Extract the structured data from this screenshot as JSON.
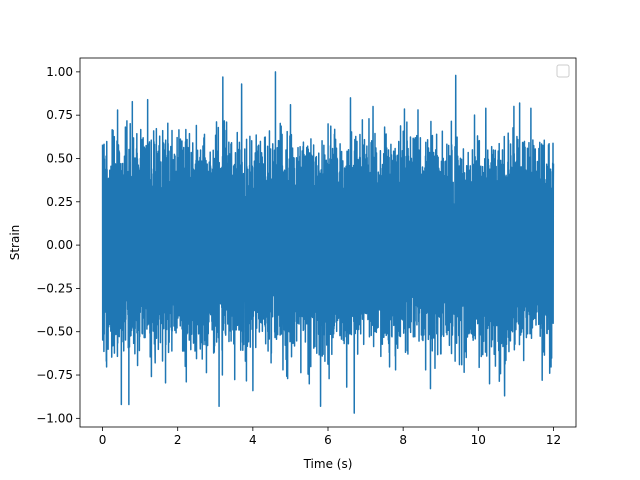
{
  "chart_data": {
    "type": "line",
    "title": "",
    "xlabel": "Time (s)",
    "ylabel": "Strain",
    "xlim": [
      -0.6,
      12.6
    ],
    "ylim": [
      -1.05,
      1.08
    ],
    "x_ticks": [
      0,
      2,
      4,
      6,
      8,
      10,
      12
    ],
    "x_tick_labels": [
      "0",
      "2",
      "4",
      "6",
      "8",
      "10",
      "12"
    ],
    "y_ticks": [
      -1.0,
      -0.75,
      -0.5,
      -0.25,
      0.0,
      0.25,
      0.5,
      0.75,
      1.0
    ],
    "y_tick_labels": [
      "−1.00",
      "−0.75",
      "−0.50",
      "−0.25",
      "0.00",
      "0.25",
      "0.50",
      "0.75",
      "1.00"
    ],
    "grid": false,
    "legend": {
      "placement": "top-right",
      "entries": []
    },
    "series": [
      {
        "color": "#1f77b4",
        "x_range": [
          0,
          12
        ],
        "typical_amplitude": 0.5,
        "peaks": [
          [
            0.0,
            0.58
          ],
          [
            0.1,
            -0.67
          ],
          [
            0.4,
            0.78
          ],
          [
            0.5,
            -0.92
          ],
          [
            0.7,
            -0.92
          ],
          [
            1.2,
            0.84
          ],
          [
            1.4,
            -0.68
          ],
          [
            2.2,
            0.84
          ],
          [
            2.2,
            -0.7
          ],
          [
            2.6,
            -0.6
          ],
          [
            3.2,
            0.97
          ],
          [
            3.1,
            -0.93
          ],
          [
            3.3,
            0.71
          ],
          [
            3.7,
            0.93
          ],
          [
            3.8,
            -0.67
          ],
          [
            4.0,
            -0.84
          ],
          [
            4.6,
            1.0
          ],
          [
            4.8,
            -0.72
          ],
          [
            5.0,
            0.81
          ],
          [
            5.5,
            -0.8
          ],
          [
            5.8,
            -0.93
          ],
          [
            6.0,
            0.7
          ],
          [
            6.5,
            -0.82
          ],
          [
            6.6,
            0.85
          ],
          [
            6.7,
            -0.97
          ],
          [
            7.2,
            0.8
          ],
          [
            7.8,
            -0.72
          ],
          [
            8.1,
            0.71
          ],
          [
            8.6,
            -0.72
          ],
          [
            9.4,
            0.98
          ],
          [
            9.5,
            -0.69
          ],
          [
            9.9,
            0.75
          ],
          [
            10.2,
            0.79
          ],
          [
            10.3,
            -0.8
          ],
          [
            10.7,
            -0.87
          ],
          [
            11.1,
            0.82
          ],
          [
            11.4,
            0.79
          ],
          [
            11.7,
            -0.78
          ],
          [
            11.9,
            -0.74
          ],
          [
            12.0,
            0.47
          ]
        ]
      }
    ]
  }
}
